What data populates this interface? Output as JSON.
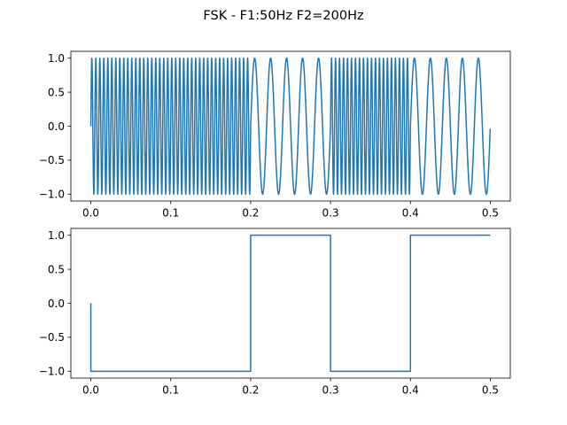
{
  "figure": {
    "suptitle": "FSK - F1:50Hz F2=200Hz",
    "line_color": "#1f77b4"
  },
  "chart_data": [
    {
      "type": "line",
      "title": "",
      "xlabel": "",
      "ylabel": "",
      "xlim": [
        -0.025,
        0.525
      ],
      "ylim": [
        -1.1,
        1.1
      ],
      "x_ticks": [
        0.0,
        0.1,
        0.2,
        0.3,
        0.4,
        0.5
      ],
      "x_tick_labels": [
        "0.0",
        "0.1",
        "0.2",
        "0.3",
        "0.4",
        "0.5"
      ],
      "y_ticks": [
        1.0,
        0.5,
        0.0,
        -0.5,
        -1.0
      ],
      "y_tick_labels": [
        "1.0",
        "0.5",
        "0.0",
        "−0.5",
        "−1.0"
      ],
      "grid": false,
      "legend": "none",
      "series": [
        {
          "function": "sin(2*pi*f*t)",
          "x_start": 0.0,
          "x_end": 0.5,
          "sample_rate": 8000,
          "segments": [
            {
              "x_from": 0.0,
              "x_to": 0.2,
              "frequency_hz": 200
            },
            {
              "x_from": 0.2,
              "x_to": 0.3,
              "frequency_hz": 50
            },
            {
              "x_from": 0.3,
              "x_to": 0.4,
              "frequency_hz": 200
            },
            {
              "x_from": 0.4,
              "x_to": 0.5,
              "frequency_hz": 50
            }
          ]
        }
      ]
    },
    {
      "type": "line",
      "title": "",
      "xlabel": "",
      "ylabel": "",
      "xlim": [
        -0.025,
        0.525
      ],
      "ylim": [
        -1.1,
        1.1
      ],
      "x_ticks": [
        0.0,
        0.1,
        0.2,
        0.3,
        0.4,
        0.5
      ],
      "x_tick_labels": [
        "0.0",
        "0.1",
        "0.2",
        "0.3",
        "0.4",
        "0.5"
      ],
      "y_ticks": [
        1.0,
        0.5,
        0.0,
        -0.5,
        -1.0
      ],
      "y_tick_labels": [
        "1.0",
        "0.5",
        "0.0",
        "−0.5",
        "−1.0"
      ],
      "grid": false,
      "legend": "none",
      "series": [
        {
          "x": [
            0.0,
            0.0,
            0.2,
            0.2,
            0.3,
            0.3,
            0.4,
            0.4,
            0.5
          ],
          "y": [
            0.0,
            -1.0,
            -1.0,
            1.0,
            1.0,
            -1.0,
            -1.0,
            1.0,
            1.0
          ]
        }
      ]
    }
  ]
}
